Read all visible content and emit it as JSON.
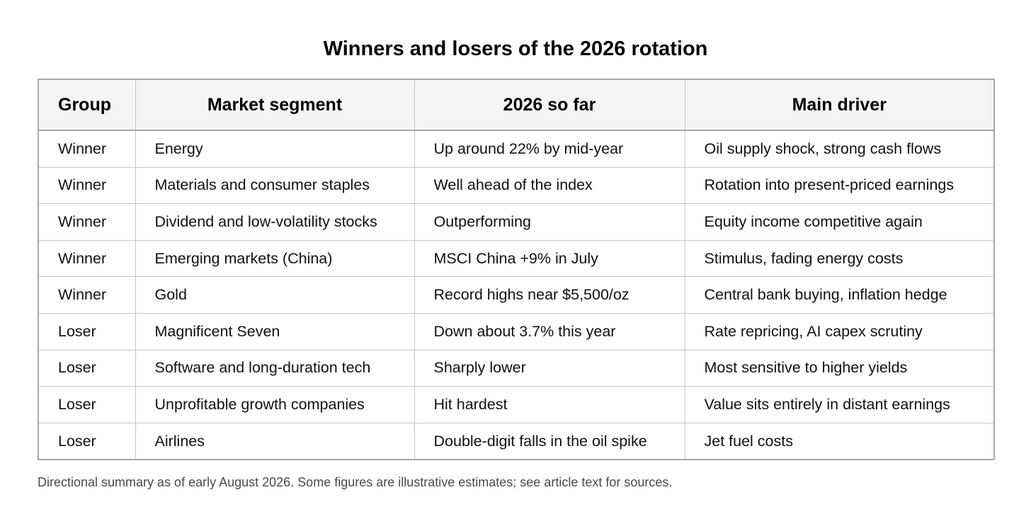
{
  "title": "Winners and losers of the 2026 rotation",
  "table": {
    "headers": [
      "Group",
      "Market segment",
      "2026 so far",
      "Main driver"
    ],
    "rows": [
      [
        "Winner",
        "Energy",
        "Up around 22% by mid-year",
        "Oil supply shock, strong cash flows"
      ],
      [
        "Winner",
        "Materials and consumer staples",
        "Well ahead of the index",
        "Rotation into present-priced earnings"
      ],
      [
        "Winner",
        "Dividend and low-volatility stocks",
        "Outperforming",
        "Equity income competitive again"
      ],
      [
        "Winner",
        "Emerging markets (China)",
        "MSCI China +9% in July",
        "Stimulus, fading energy costs"
      ],
      [
        "Winner",
        "Gold",
        "Record highs near $5,500/oz",
        "Central bank buying, inflation hedge"
      ],
      [
        "Loser",
        "Magnificent Seven",
        "Down about 3.7% this year",
        "Rate repricing, AI capex scrutiny"
      ],
      [
        "Loser",
        "Software and long-duration tech",
        "Sharply lower",
        "Most sensitive to higher yields"
      ],
      [
        "Loser",
        "Unprofitable growth companies",
        "Hit hardest",
        "Value sits entirely in distant earnings"
      ],
      [
        "Loser",
        "Airlines",
        "Double-digit falls in the oil spike",
        "Jet fuel costs"
      ]
    ]
  },
  "footnote": "Directional summary as of early August 2026. Some figures are illustrative estimates; see article text for sources.",
  "colors": {
    "header_bg": "#f5f5f5",
    "border": "#a8a8a8",
    "footnote_text": "#4a4a4a"
  }
}
